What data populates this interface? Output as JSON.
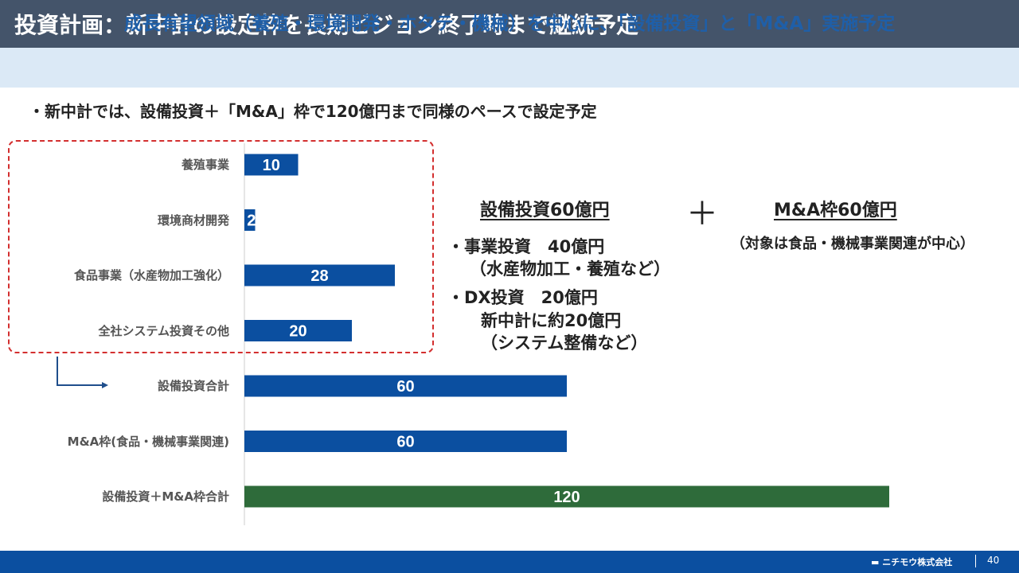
{
  "header": {
    "title": "投資計画：新中計の設定枠を長期ビジョン終了時まで継続予定",
    "subtitle": "成長有望領域（養殖・環境開発・ホタテ・機械）を中心に、「設備投資」と「M&A」実施予定"
  },
  "body": {
    "bullet": "・新中計では、設備投資＋「M&A」枠で120億円まで同様のペースで設定予定"
  },
  "chart_data": {
    "type": "bar",
    "orientation": "horizontal",
    "categories": [
      "養殖事業",
      "環境商材開発",
      "食品事業（水産物加工強化）",
      "全社システム投資その他",
      "設備投資合計",
      "M&A枠(食品・機械事業関連)",
      "設備投資＋M&A枠合計"
    ],
    "values": [
      10,
      2,
      28,
      20,
      60,
      60,
      120
    ],
    "value_labels": [
      "10",
      "2",
      "28",
      "20",
      "60",
      "60",
      "120"
    ],
    "colors": [
      "#0b4fa0",
      "#0b4fa0",
      "#0b4fa0",
      "#0b4fa0",
      "#0b4fa0",
      "#0b4fa0",
      "#2e6b3a"
    ],
    "xlim": [
      0,
      120
    ],
    "grid": false,
    "legend": "none"
  },
  "annotations": {
    "capex_heading": "設備投資60億円",
    "capex_line1": "・事業投資　40億円",
    "capex_line2": "（水産物加工・養殖など）",
    "capex_line3": "・DX投資　20億円",
    "capex_line4": "新中計に約20億円",
    "capex_line5": "（システム整備など）",
    "plus": "＋",
    "ma_heading": "M&A枠60億円",
    "ma_note": "（対象は食品・機械事業関連が中心）"
  },
  "footer": {
    "company": "ニチモウ株式会社",
    "page": "40"
  },
  "colors": {
    "title_bar": "#44546a",
    "subtitle_band": "#dbe9f6",
    "accent_blue": "#0b4fa0",
    "total_green": "#2e6b3a",
    "dash_red": "#d32f2f"
  }
}
